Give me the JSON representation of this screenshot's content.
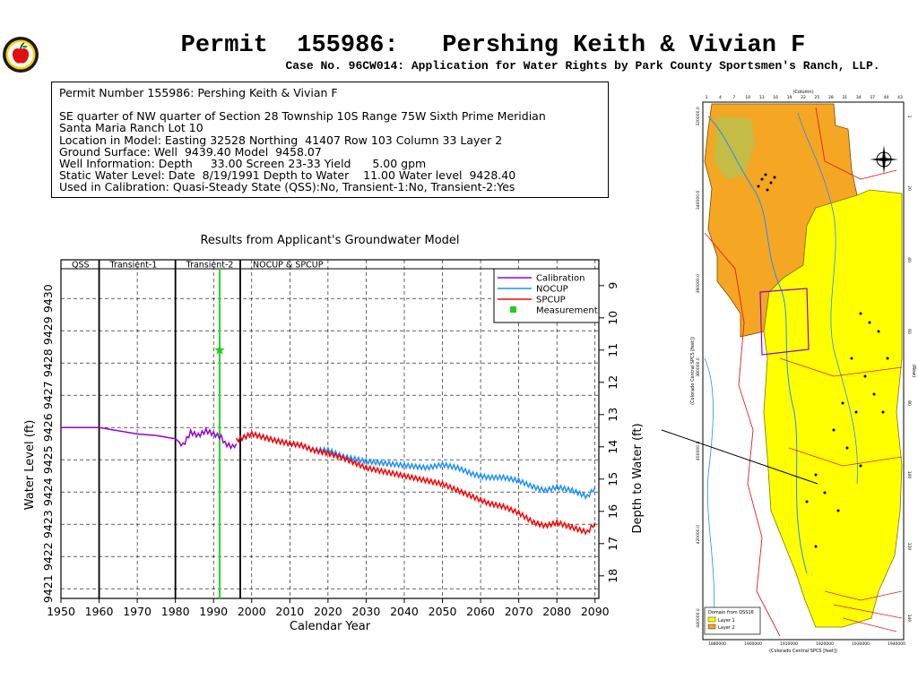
{
  "header": {
    "title": "Permit  155986:   Pershing Keith & Vivian F",
    "subtitle": "Case No. 96CW014: Application for Water Rights by Park County Sportsmen's Ranch, LLP."
  },
  "info": {
    "permit_line": "Permit Number 155986: Pershing Keith & Vivian F",
    "location_line": "SE quarter of NW quarter of Section 28 Township 10S Range 75W Sixth Prime Meridian",
    "subdivision_line": "Santa Maria Ranch Lot 10",
    "model_location_line": "Location in Model: Easting 32528 Northing  41407 Row 103 Column 33 Layer 2",
    "ground_surface_line": "Ground Surface: Well  9439.40 Model  9458.07",
    "well_info_line": "Well Information: Depth     33.00 Screen 23-33 Yield      5.00 gpm",
    "static_water_line": "Static Water Level: Date  8/19/1991 Depth to Water    11.00 Water level  9428.40",
    "calibration_line": "Used in Calibration: Quasi-Steady State (QSS):No, Transient-1:No, Transient-2:Yes"
  },
  "chart_data": {
    "type": "line",
    "title": "Results from Applicant's Groundwater Model",
    "xlabel": "Calendar Year",
    "ylabel_left": "Water Level (ft)",
    "ylabel_right": "Depth to Water (ft)",
    "xlim": [
      1950,
      2091
    ],
    "ylim": [
      9420.7,
      9431.2
    ],
    "x_ticks": [
      "1950",
      "1960",
      "1970",
      "1980",
      "1990",
      "2000",
      "2010",
      "2020",
      "2030",
      "2040",
      "2050",
      "2060",
      "2070",
      "2080",
      "2090"
    ],
    "y_ticks_left": [
      "9421",
      "9422",
      "9423",
      "9424",
      "9425",
      "9426",
      "9427",
      "9428",
      "9429",
      "9430"
    ],
    "y_ticks_right": [
      "9",
      "10",
      "11",
      "12",
      "13",
      "14",
      "15",
      "16",
      "17",
      "18"
    ],
    "periods": [
      {
        "label": "QSS",
        "start": 1950,
        "end": 1960
      },
      {
        "label": "Transient-1",
        "start": 1960,
        "end": 1980
      },
      {
        "label": "Transient-2",
        "start": 1980,
        "end": 1997
      },
      {
        "label": "NOCUP  &  SPCUP",
        "start": 1997,
        "end": 2091
      }
    ],
    "measurement_marker_year": 1991.6,
    "grid": true,
    "legend_position": "top-right",
    "series": [
      {
        "name": "Calibration",
        "color": "#9400d3",
        "x": [
          1950,
          1960,
          1965,
          1970,
          1975,
          1980,
          1982,
          1984,
          1986,
          1988,
          1990,
          1992,
          1993,
          1995,
          1996
        ],
        "y": [
          9426.0,
          9426.0,
          9425.9,
          9425.8,
          9425.75,
          9425.65,
          9425.45,
          9425.85,
          9425.75,
          9425.9,
          9425.8,
          9425.7,
          9425.5,
          9425.4,
          9425.5
        ]
      },
      {
        "name": "NOCUP",
        "color": "#1e90ff",
        "x": [
          1996,
          2000,
          2003,
          2006,
          2010,
          2013,
          2016,
          2020,
          2024,
          2028,
          2030,
          2034,
          2038,
          2042,
          2046,
          2050,
          2054,
          2058,
          2062,
          2066,
          2070,
          2074,
          2077,
          2080,
          2084,
          2088,
          2090
        ],
        "y": [
          9425.6,
          9425.8,
          9425.7,
          9425.6,
          9425.5,
          9425.45,
          9425.3,
          9425.3,
          9425.1,
          9425.0,
          9424.95,
          9424.9,
          9424.85,
          9424.8,
          9424.75,
          9424.85,
          9424.75,
          9424.55,
          9424.45,
          9424.45,
          9424.35,
          9424.15,
          9424.05,
          9424.15,
          9424.05,
          9423.85,
          9424.15
        ]
      },
      {
        "name": "SPCUP",
        "color": "#ff0000",
        "x": [
          1996,
          2000,
          2003,
          2006,
          2010,
          2013,
          2016,
          2020,
          2024,
          2028,
          2030,
          2034,
          2038,
          2042,
          2046,
          2050,
          2054,
          2058,
          2062,
          2066,
          2070,
          2074,
          2077,
          2080,
          2084,
          2088,
          2090
        ],
        "y": [
          9425.6,
          9425.8,
          9425.7,
          9425.6,
          9425.5,
          9425.45,
          9425.3,
          9425.2,
          9425.05,
          9424.85,
          9424.75,
          9424.65,
          9424.55,
          9424.45,
          9424.35,
          9424.25,
          9424.05,
          9423.85,
          9423.65,
          9423.55,
          9423.35,
          9423.05,
          9422.95,
          9423.05,
          9422.9,
          9422.75,
          9423.05
        ]
      },
      {
        "name": "Measurement",
        "color": "#22cc22",
        "marker": "star",
        "x": [
          1991.6
        ],
        "y": [
          9428.4
        ]
      }
    ]
  },
  "map": {
    "top_axis_label": "(Column)",
    "left_axis_label": "(Colorado Central SPCS [feet])",
    "right_axis_label": "(Row)",
    "bottom_axis_label": "(Colorado Central SPCS [feet])",
    "legend_title": "Domain from QSS16",
    "legend_layer1": "Layer 1",
    "legend_layer2": "Layer 2",
    "layer1_color": "#ffff00",
    "layer2_color": "#f5a623",
    "top_ticks": [
      "1",
      "4",
      "7",
      "10",
      "13",
      "16",
      "19",
      "22",
      "25",
      "28",
      "31",
      "34",
      "37",
      "40",
      "43"
    ],
    "bottom_ticks": [
      "1880000",
      "1900000",
      "1910000",
      "1920000",
      "1930000",
      "1940000"
    ],
    "left_ticks": [
      "320000.0",
      "340000.0",
      "360000.0",
      "380000.0",
      "400000.0",
      "420000.0",
      "440000.0"
    ],
    "right_ticks": [
      "1",
      "20",
      "40",
      "60",
      "80",
      "100",
      "120",
      "140"
    ]
  }
}
